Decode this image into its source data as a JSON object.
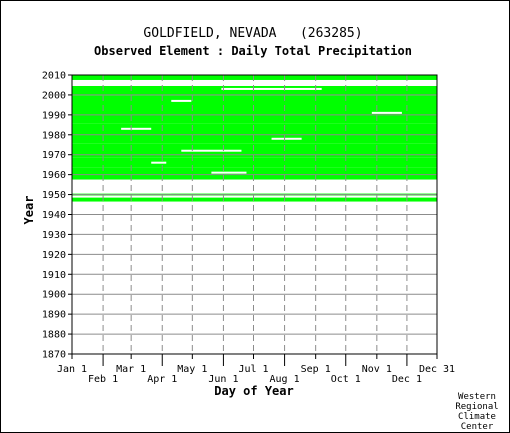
{
  "chart_data": {
    "type": "heatmap",
    "title": "GOLDFIELD, NEVADA   (263285)",
    "subtitle": "Observed Element : Daily Total Precipitation",
    "xlabel": "Day of Year",
    "ylabel": "Year",
    "xlim": [
      1,
      365
    ],
    "ylim": [
      1870,
      2010
    ],
    "y_ticks": [
      1870,
      1880,
      1890,
      1900,
      1910,
      1920,
      1930,
      1940,
      1950,
      1960,
      1970,
      1980,
      1990,
      2000,
      2010
    ],
    "x_ticks_top_row": [
      {
        "label": "Jan 1",
        "day": 1
      },
      {
        "label": "Mar 1",
        "day": 60
      },
      {
        "label": "May 1",
        "day": 121
      },
      {
        "label": "Jul 1",
        "day": 182
      },
      {
        "label": "Sep 1",
        "day": 244
      },
      {
        "label": "Nov 1",
        "day": 305
      },
      {
        "label": "Dec 31",
        "day": 365
      }
    ],
    "x_ticks_bottom_row": [
      {
        "label": "Feb 1",
        "day": 32
      },
      {
        "label": "Apr 1",
        "day": 91
      },
      {
        "label": "Jun 1",
        "day": 152
      },
      {
        "label": "Aug 1",
        "day": 213
      },
      {
        "label": "Oct 1",
        "day": 274
      },
      {
        "label": "Dec 1",
        "day": 335
      }
    ],
    "grid": true,
    "data_color": "#00ff00",
    "observed_year_spans": [
      {
        "years": [
          1947,
          1948
        ],
        "from_day": 1,
        "to_day": 365
      },
      {
        "years": [
          1950,
          1950
        ],
        "from_day": 1,
        "to_day": 365
      },
      {
        "years": [
          1958,
          1963
        ],
        "from_day": 1,
        "to_day": 365
      },
      {
        "years": [
          1964,
          1968
        ],
        "from_day": 1,
        "to_day": 365
      },
      {
        "years": [
          1969,
          1975
        ],
        "from_day": 1,
        "to_day": 365
      },
      {
        "years": [
          1976,
          1985
        ],
        "from_day": 1,
        "to_day": 365
      },
      {
        "years": [
          1986,
          1999
        ],
        "from_day": 1,
        "to_day": 365
      },
      {
        "years": [
          2000,
          2004
        ],
        "from_day": 1,
        "to_day": 365
      },
      {
        "years": [
          2008,
          2010
        ],
        "from_day": 1,
        "to_day": 365
      }
    ],
    "missing_segments": [
      {
        "year": 1949,
        "from_day": 1,
        "to_day": 365
      },
      {
        "year": 1951,
        "from_day": 1,
        "to_day": 100
      },
      {
        "year": 1952,
        "from_day": 1,
        "to_day": 365
      },
      {
        "year": 1953,
        "from_day": 1,
        "to_day": 365
      },
      {
        "year": 1954,
        "from_day": 1,
        "to_day": 365
      },
      {
        "year": 1955,
        "from_day": 1,
        "to_day": 365
      },
      {
        "year": 1956,
        "from_day": 1,
        "to_day": 365
      },
      {
        "year": 1957,
        "from_day": 1,
        "to_day": 365
      },
      {
        "year": 1961,
        "from_day": 140,
        "to_day": 175
      },
      {
        "year": 1966,
        "from_day": 80,
        "to_day": 95
      },
      {
        "year": 1972,
        "from_day": 110,
        "to_day": 170
      },
      {
        "year": 1978,
        "from_day": 200,
        "to_day": 230
      },
      {
        "year": 1983,
        "from_day": 50,
        "to_day": 80
      },
      {
        "year": 1991,
        "from_day": 300,
        "to_day": 330
      },
      {
        "year": 1997,
        "from_day": 100,
        "to_day": 120
      },
      {
        "year": 2003,
        "from_day": 150,
        "to_day": 250
      },
      {
        "year": 2005,
        "from_day": 1,
        "to_day": 365
      },
      {
        "year": 2006,
        "from_day": 1,
        "to_day": 365
      },
      {
        "year": 2007,
        "from_day": 1,
        "to_day": 365
      }
    ],
    "credit": [
      "Western",
      "Regional",
      "Climate",
      "Center"
    ]
  }
}
